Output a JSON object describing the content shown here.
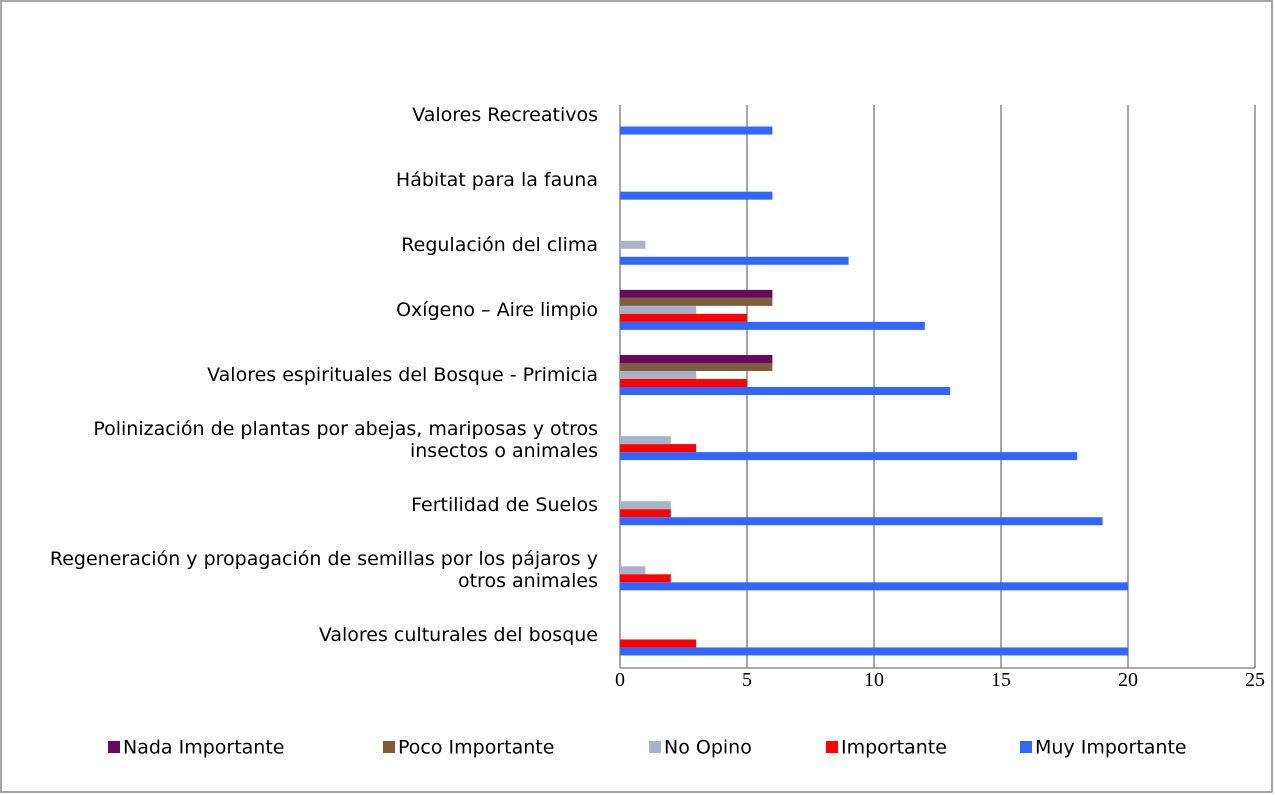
{
  "chart_data": {
    "type": "bar",
    "orientation": "horizontal",
    "categories": [
      "Valores culturales del bosque",
      "Regeneración y propagación de semillas por los pájaros y otros animales",
      "Fertilidad de Suelos",
      "Polinización de plantas por abejas, mariposas y otros insectos o animales",
      "Valores espirituales  del Bosque - Primicia",
      "Oxígeno – Aire limpio",
      "Regulación del clima",
      "Hábitat para la fauna",
      "Valores Recreativos"
    ],
    "series": [
      {
        "name": "Nada Importante",
        "color": "#660a5c",
        "values": [
          0,
          0,
          0,
          0,
          6,
          6,
          0,
          0,
          0
        ]
      },
      {
        "name": "Poco Importante",
        "color": "#7f5d3c",
        "values": [
          0,
          0,
          0,
          0,
          6,
          6,
          0,
          0,
          0
        ]
      },
      {
        "name": "No Opino",
        "color": "#a6b3c9",
        "values": [
          0,
          1,
          2,
          2,
          3,
          3,
          1,
          0,
          0
        ]
      },
      {
        "name": "Importante",
        "color": "#ff0000",
        "values": [
          3,
          2,
          2,
          3,
          5,
          5,
          0,
          0,
          0
        ]
      },
      {
        "name": "Muy Importante",
        "color": "#3366ff",
        "values": [
          20,
          20,
          19,
          18,
          13,
          12,
          9,
          6,
          6
        ]
      }
    ],
    "xlim": [
      0,
      25
    ],
    "xticks": [
      0,
      5,
      10,
      15,
      20,
      25
    ],
    "grid": true,
    "legend": "bottom"
  }
}
